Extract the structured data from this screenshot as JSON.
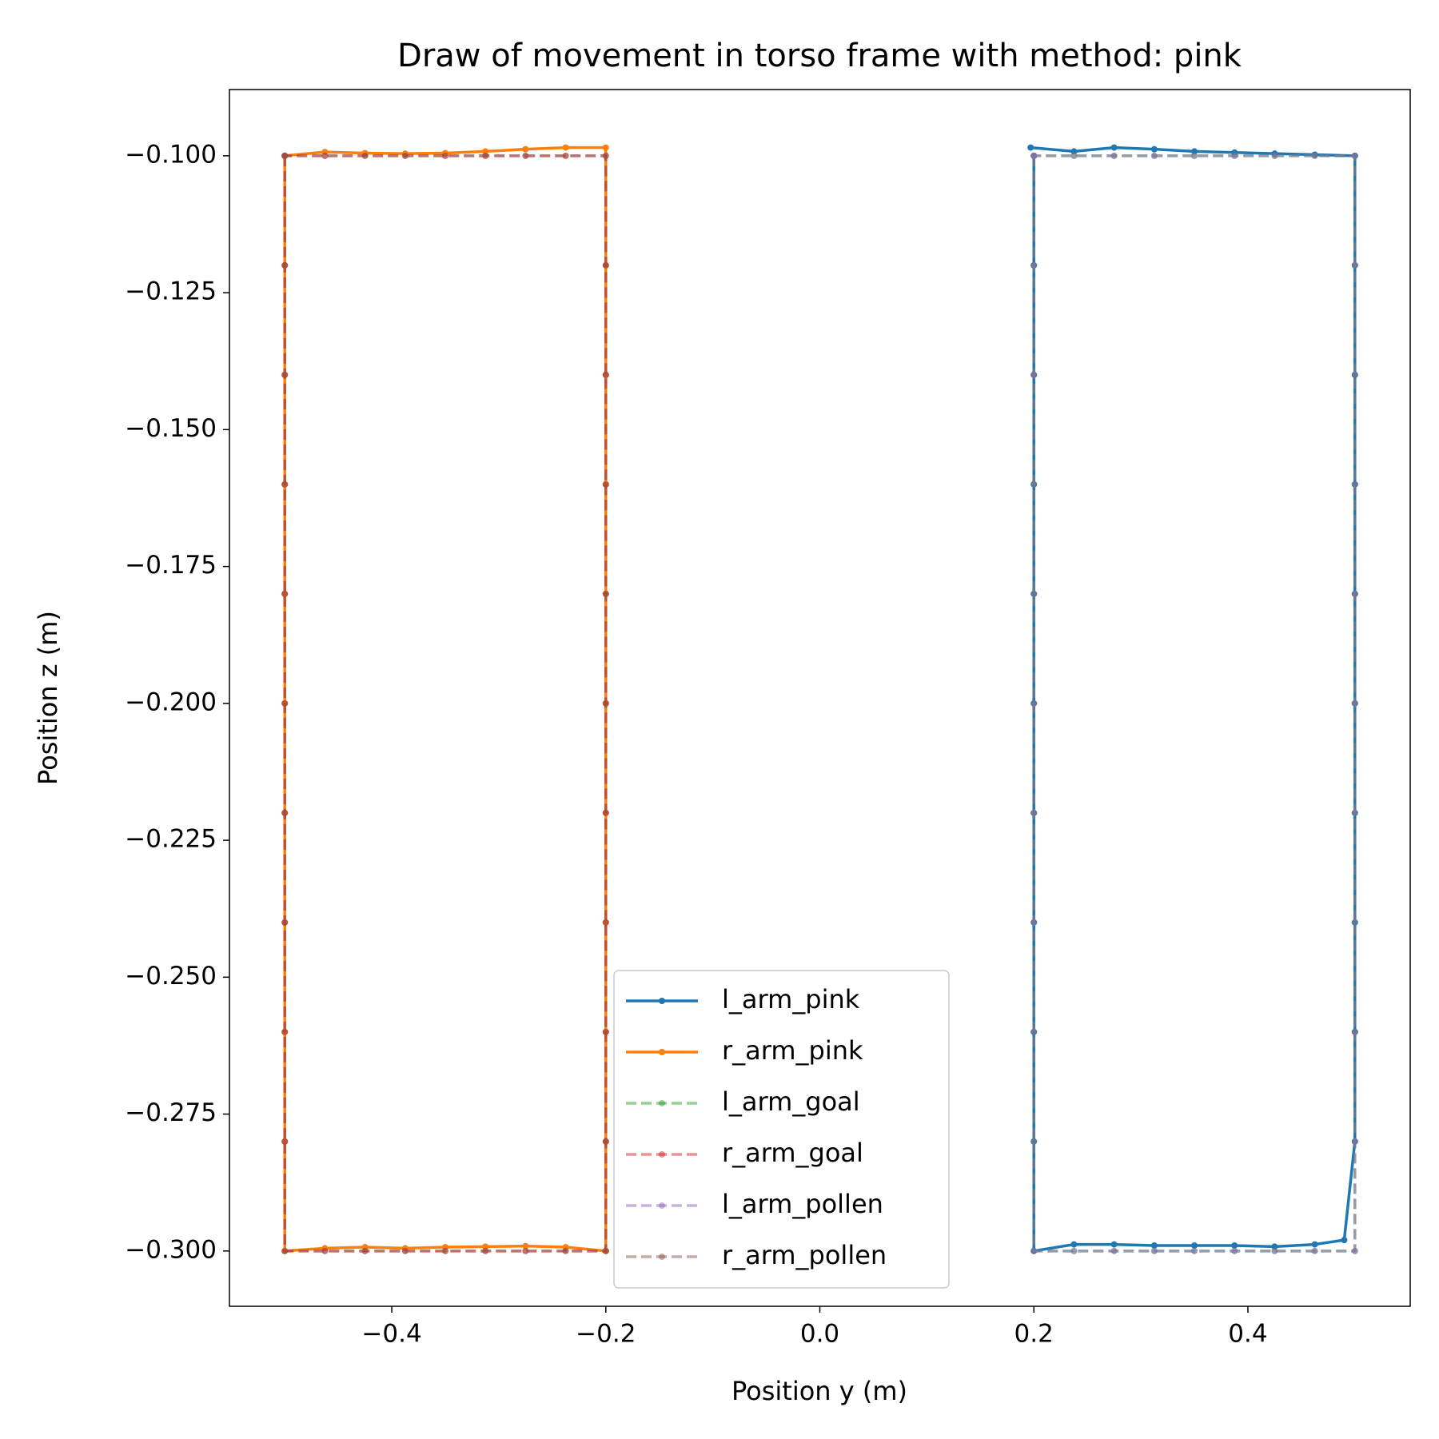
{
  "chart_data": {
    "type": "line",
    "title": "Draw of movement in torso frame with method: pink",
    "x_label": "Position y (m)",
    "y_label": "Position z (m)",
    "xlim": [
      -0.5517,
      0.5517
    ],
    "ylim": [
      -0.3101,
      -0.0879
    ],
    "xticks": [
      {
        "value": -0.4,
        "label": "−0.4"
      },
      {
        "value": -0.2,
        "label": "−0.2"
      },
      {
        "value": 0,
        "label": "0.0"
      },
      {
        "value": 0.2,
        "label": "0.2"
      },
      {
        "value": 0.4,
        "label": "0.4"
      }
    ],
    "yticks": [
      {
        "value": -0.1,
        "label": "−0.100"
      },
      {
        "value": -0.125,
        "label": "−0.125"
      },
      {
        "value": -0.15,
        "label": "−0.150"
      },
      {
        "value": -0.175,
        "label": "−0.175"
      },
      {
        "value": -0.2,
        "label": "−0.200"
      },
      {
        "value": -0.225,
        "label": "−0.225"
      },
      {
        "value": -0.25,
        "label": "−0.250"
      },
      {
        "value": -0.275,
        "label": "−0.275"
      },
      {
        "value": -0.3,
        "label": "−0.300"
      }
    ],
    "grid": false,
    "legend": "lower center",
    "series": [
      {
        "name": "l_arm_pink",
        "color": "#1f77b4",
        "linestyle": "solid",
        "alpha": 1,
        "x": [
          0.2,
          0.2,
          0.2,
          0.2,
          0.2,
          0.2,
          0.2,
          0.2,
          0.2,
          0.2,
          0.2,
          0.2375,
          0.275,
          0.3125,
          0.35,
          0.3875,
          0.425,
          0.4625,
          0.49,
          0.5,
          0.5,
          0.5,
          0.5,
          0.5,
          0.5,
          0.5,
          0.5,
          0.5,
          0.5,
          0.4625,
          0.425,
          0.3875,
          0.35,
          0.3125,
          0.275,
          0.2375,
          0.197
        ],
        "values": [
          -0.1,
          -0.12,
          -0.14,
          -0.16,
          -0.18,
          -0.2,
          -0.22,
          -0.24,
          -0.26,
          -0.28,
          -0.3,
          -0.2988,
          -0.2988,
          -0.299,
          -0.299,
          -0.299,
          -0.2992,
          -0.2988,
          -0.298,
          -0.28,
          -0.26,
          -0.24,
          -0.22,
          -0.2,
          -0.18,
          -0.16,
          -0.14,
          -0.12,
          -0.1,
          -0.0998,
          -0.0996,
          -0.0994,
          -0.0992,
          -0.0988,
          -0.0985,
          -0.0992,
          -0.0985
        ]
      },
      {
        "name": "r_arm_pink",
        "color": "#ff7f0e",
        "linestyle": "solid",
        "alpha": 1,
        "x": [
          -0.5,
          -0.5,
          -0.5,
          -0.5,
          -0.5,
          -0.5,
          -0.5,
          -0.5,
          -0.5,
          -0.5,
          -0.5,
          -0.4625,
          -0.425,
          -0.3875,
          -0.35,
          -0.3125,
          -0.275,
          -0.2375,
          -0.2,
          -0.2,
          -0.2,
          -0.2,
          -0.2,
          -0.2,
          -0.2,
          -0.2,
          -0.2,
          -0.2,
          -0.2,
          -0.2375,
          -0.275,
          -0.3125,
          -0.35,
          -0.3875,
          -0.425,
          -0.4625,
          -0.5
        ],
        "values": [
          -0.1,
          -0.12,
          -0.14,
          -0.16,
          -0.18,
          -0.2,
          -0.22,
          -0.24,
          -0.26,
          -0.28,
          -0.3,
          -0.2995,
          -0.2993,
          -0.2995,
          -0.2993,
          -0.2992,
          -0.2991,
          -0.2993,
          -0.3,
          -0.28,
          -0.26,
          -0.24,
          -0.22,
          -0.2,
          -0.18,
          -0.16,
          -0.14,
          -0.12,
          -0.0985,
          -0.0985,
          -0.0988,
          -0.0992,
          -0.0995,
          -0.0996,
          -0.0995,
          -0.0993,
          -0.1
        ]
      },
      {
        "name": "l_arm_goal",
        "color": "#2ca02c",
        "linestyle": "dashed",
        "alpha": 0.5,
        "x": [
          0.2,
          0.2,
          0.2,
          0.2,
          0.2,
          0.2,
          0.2,
          0.2,
          0.2,
          0.2,
          0.2,
          0.2375,
          0.275,
          0.3125,
          0.35,
          0.3875,
          0.425,
          0.4625,
          0.5,
          0.5,
          0.5,
          0.5,
          0.5,
          0.5,
          0.5,
          0.5,
          0.5,
          0.5,
          0.5,
          0.4625,
          0.425,
          0.3875,
          0.35,
          0.3125,
          0.275,
          0.2375,
          0.2
        ],
        "values": [
          -0.1,
          -0.12,
          -0.14,
          -0.16,
          -0.18,
          -0.2,
          -0.22,
          -0.24,
          -0.26,
          -0.28,
          -0.3,
          -0.3,
          -0.3,
          -0.3,
          -0.3,
          -0.3,
          -0.3,
          -0.3,
          -0.3,
          -0.28,
          -0.26,
          -0.24,
          -0.22,
          -0.2,
          -0.18,
          -0.16,
          -0.14,
          -0.12,
          -0.1,
          -0.1,
          -0.1,
          -0.1,
          -0.1,
          -0.1,
          -0.1,
          -0.1,
          -0.1
        ]
      },
      {
        "name": "r_arm_goal",
        "color": "#d62728",
        "linestyle": "dashed",
        "alpha": 0.5,
        "x": [
          -0.5,
          -0.5,
          -0.5,
          -0.5,
          -0.5,
          -0.5,
          -0.5,
          -0.5,
          -0.5,
          -0.5,
          -0.5,
          -0.4625,
          -0.425,
          -0.3875,
          -0.35,
          -0.3125,
          -0.275,
          -0.2375,
          -0.2,
          -0.2,
          -0.2,
          -0.2,
          -0.2,
          -0.2,
          -0.2,
          -0.2,
          -0.2,
          -0.2,
          -0.2,
          -0.2375,
          -0.275,
          -0.3125,
          -0.35,
          -0.3875,
          -0.425,
          -0.4625,
          -0.5
        ],
        "values": [
          -0.1,
          -0.12,
          -0.14,
          -0.16,
          -0.18,
          -0.2,
          -0.22,
          -0.24,
          -0.26,
          -0.28,
          -0.3,
          -0.3,
          -0.3,
          -0.3,
          -0.3,
          -0.3,
          -0.3,
          -0.3,
          -0.3,
          -0.28,
          -0.26,
          -0.24,
          -0.22,
          -0.2,
          -0.18,
          -0.16,
          -0.14,
          -0.12,
          -0.1,
          -0.1,
          -0.1,
          -0.1,
          -0.1,
          -0.1,
          -0.1,
          -0.1,
          -0.1
        ]
      },
      {
        "name": "l_arm_pollen",
        "color": "#9467bd",
        "linestyle": "dashed",
        "alpha": 0.5,
        "x": [
          0.2,
          0.2,
          0.2,
          0.2,
          0.2,
          0.2,
          0.2,
          0.2,
          0.2,
          0.2,
          0.2,
          0.2375,
          0.275,
          0.3125,
          0.35,
          0.3875,
          0.425,
          0.4625,
          0.5,
          0.5,
          0.5,
          0.5,
          0.5,
          0.5,
          0.5,
          0.5,
          0.5,
          0.5,
          0.5,
          0.4625,
          0.425,
          0.3875,
          0.35,
          0.3125,
          0.275,
          0.2375,
          0.2
        ],
        "values": [
          -0.1,
          -0.12,
          -0.14,
          -0.16,
          -0.18,
          -0.2,
          -0.22,
          -0.24,
          -0.26,
          -0.28,
          -0.3,
          -0.3,
          -0.3,
          -0.3,
          -0.3,
          -0.3,
          -0.3,
          -0.3,
          -0.3,
          -0.28,
          -0.26,
          -0.24,
          -0.22,
          -0.2,
          -0.18,
          -0.16,
          -0.14,
          -0.12,
          -0.1,
          -0.1,
          -0.1,
          -0.1,
          -0.1,
          -0.1,
          -0.1,
          -0.1,
          -0.1
        ]
      },
      {
        "name": "r_arm_pollen",
        "color": "#8c564b",
        "linestyle": "dashed",
        "alpha": 0.5,
        "x": [
          -0.5,
          -0.5,
          -0.5,
          -0.5,
          -0.5,
          -0.5,
          -0.5,
          -0.5,
          -0.5,
          -0.5,
          -0.5,
          -0.4625,
          -0.425,
          -0.3875,
          -0.35,
          -0.3125,
          -0.275,
          -0.2375,
          -0.2,
          -0.2,
          -0.2,
          -0.2,
          -0.2,
          -0.2,
          -0.2,
          -0.2,
          -0.2,
          -0.2,
          -0.2,
          -0.2375,
          -0.275,
          -0.3125,
          -0.35,
          -0.3875,
          -0.425,
          -0.4625,
          -0.5
        ],
        "values": [
          -0.1,
          -0.12,
          -0.14,
          -0.16,
          -0.18,
          -0.2,
          -0.22,
          -0.24,
          -0.26,
          -0.28,
          -0.3,
          -0.3,
          -0.3,
          -0.3,
          -0.3,
          -0.3,
          -0.3,
          -0.3,
          -0.3,
          -0.28,
          -0.26,
          -0.24,
          -0.22,
          -0.2,
          -0.18,
          -0.16,
          -0.14,
          -0.12,
          -0.1,
          -0.1,
          -0.1,
          -0.1,
          -0.1,
          -0.1,
          -0.1,
          -0.1,
          -0.1
        ]
      }
    ]
  }
}
